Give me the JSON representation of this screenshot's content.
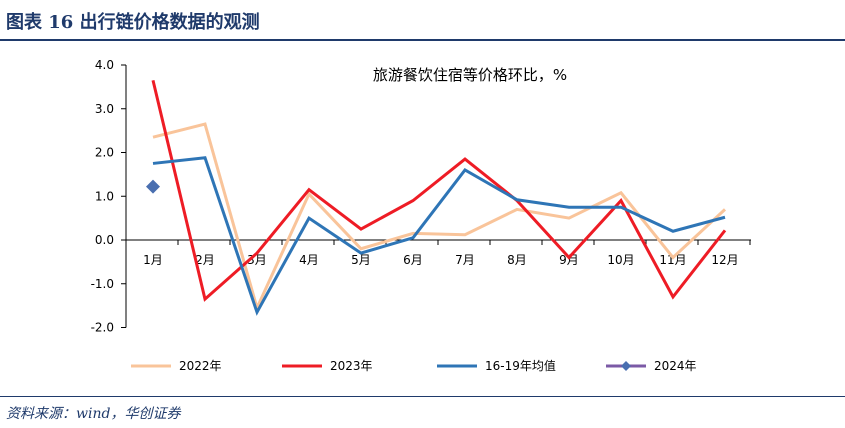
{
  "header": {
    "title": "图表 16    出行链价格数据的观测"
  },
  "footer": {
    "source": "资料来源：wind，华创证券"
  },
  "chart_data": {
    "type": "line",
    "title": "旅游餐饮住宿等价格环比，%",
    "categories": [
      "1月",
      "2月",
      "3月",
      "4月",
      "5月",
      "6月",
      "7月",
      "8月",
      "9月",
      "10月",
      "11月",
      "12月"
    ],
    "ylim": [
      -2.0,
      4.0
    ],
    "yticks": [
      "4.0",
      "3.0",
      "2.0",
      "1.0",
      "0.0",
      "-1.0",
      "-2.0"
    ],
    "ytick_values": [
      4,
      3,
      2,
      1,
      0,
      -1,
      -2
    ],
    "grid": false,
    "legend_position": "bottom",
    "series": [
      {
        "name": "2022年",
        "color": "#f9c49a",
        "marker": "none",
        "values": [
          2.35,
          2.65,
          -1.55,
          1.05,
          -0.2,
          0.15,
          0.12,
          0.7,
          0.5,
          1.08,
          -0.4,
          0.7
        ]
      },
      {
        "name": "2023年",
        "color": "#ee1c25",
        "marker": "none",
        "values": [
          3.65,
          -1.35,
          -0.3,
          1.15,
          0.25,
          0.9,
          1.85,
          0.9,
          -0.4,
          0.9,
          -1.3,
          0.22
        ]
      },
      {
        "name": "16-19年均值",
        "color": "#2e75b6",
        "marker": "none",
        "values": [
          1.75,
          1.88,
          -1.65,
          0.5,
          -0.3,
          0.05,
          1.6,
          0.92,
          0.75,
          0.75,
          0.2,
          0.52
        ]
      },
      {
        "name": "2024年",
        "color": "#4a6fb0",
        "marker": "diamond",
        "values": [
          1.22,
          null,
          null,
          null,
          null,
          null,
          null,
          null,
          null,
          null,
          null,
          null
        ]
      }
    ]
  }
}
